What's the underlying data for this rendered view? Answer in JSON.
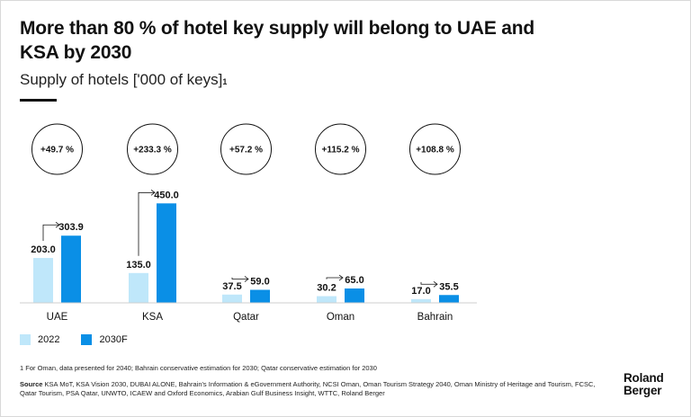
{
  "title": "More than 80 % of hotel key supply will belong to UAE and KSA by 2030",
  "subtitle": "Supply of hotels ['000 of keys]",
  "subtitle_marker": "1",
  "colors": {
    "series_2022": "#bfe7fa",
    "series_2030F": "#0a8fe6",
    "text": "#111111"
  },
  "chart_data": {
    "type": "bar",
    "categories": [
      "UAE",
      "KSA",
      "Qatar",
      "Oman",
      "Bahrain"
    ],
    "series": [
      {
        "name": "2022",
        "values": [
          203.0,
          135.0,
          37.5,
          30.2,
          17.0
        ]
      },
      {
        "name": "2030F",
        "values": [
          303.9,
          450.0,
          59.0,
          65.0,
          35.5
        ]
      }
    ],
    "value_labels_2022": [
      "203.0",
      "135.0",
      "37.5",
      "30.2",
      "17.0"
    ],
    "value_labels_2030F": [
      "303.9",
      "450.0",
      "59.0",
      "65.0",
      "35.5"
    ],
    "growth_labels": [
      "+49.7 %",
      "+233.3 %",
      "+57.2 %",
      "+115.2 %",
      "+108.8 %"
    ],
    "ylim": [
      0,
      500
    ],
    "legend_position": "bottom-left",
    "grid": false
  },
  "legend": {
    "items": [
      "2022",
      "2030F"
    ]
  },
  "footnote": "1 For Oman, data presented for 2040; Bahrain conservative estimation for 2030; Qatar conservative estimation for 2030",
  "source_label": "Source",
  "source_text": "KSA MoT, KSA Vision 2030, DUBAI ALONE, Bahrain's Information & eGovernment Authority, NCSI Oman, Oman Tourism Strategy 2040, Oman Ministry of Heritage and Tourism, FCSC, Qatar Tourism, PSA Qatar, UNWTO, ICAEW and Oxford Economics,  Arabian Gulf Business Insight, WTTC, Roland Berger",
  "logo": {
    "line1": "Roland",
    "line2": "Berger"
  }
}
